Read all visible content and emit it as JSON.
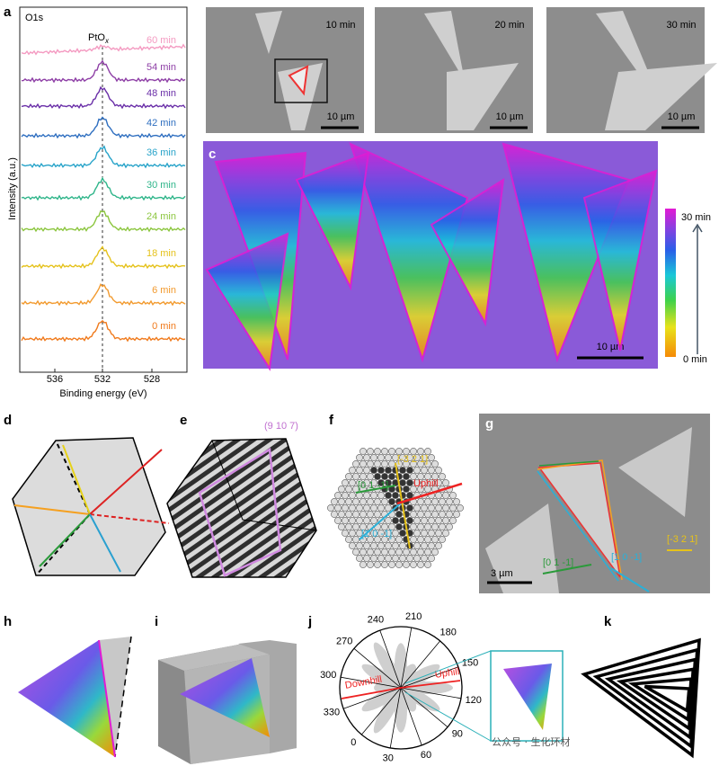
{
  "panel_a": {
    "letter": "a",
    "core_level": "O1s",
    "peak_label": "PtO",
    "peak_label_sub": "x",
    "y_label": "Intensity (a.u.)",
    "x_label": "Binding energy (eV)",
    "xticks": [
      "536",
      "532",
      "528"
    ],
    "spectra": [
      {
        "label": "60 min",
        "color": "#f49ac1"
      },
      {
        "label": "54 min",
        "color": "#8e3fa6"
      },
      {
        "label": "48 min",
        "color": "#6a2fa8"
      },
      {
        "label": "42 min",
        "color": "#2f6fc0"
      },
      {
        "label": "36 min",
        "color": "#27a3c9"
      },
      {
        "label": "30 min",
        "color": "#2fb58a"
      },
      {
        "label": "24 min",
        "color": "#8cc63f"
      },
      {
        "label": "18 min",
        "color": "#e5c21c"
      },
      {
        "label": "6 min",
        "color": "#f29a2e"
      },
      {
        "label": "0 min",
        "color": "#f07a1c"
      }
    ]
  },
  "panel_b": {
    "letter": "b",
    "images": [
      {
        "time": "10 min",
        "scale": "10 µm"
      },
      {
        "time": "20 min",
        "scale": "10 µm"
      },
      {
        "time": "30 min",
        "scale": "10 µm"
      }
    ]
  },
  "panel_c": {
    "letter": "c",
    "colorbar_max": "30 min",
    "colorbar_min": "0 min",
    "scale": "10 µm"
  },
  "panel_d": {
    "letter": "d"
  },
  "panel_e": {
    "letter": "e",
    "plane": "(9 10 7)"
  },
  "panel_f": {
    "letter": "f",
    "directions": [
      "[0 1 -1]",
      "[1 0 -1]",
      "[-3 2 1]"
    ],
    "uphill": "Uphill"
  },
  "panel_g": {
    "letter": "g",
    "directions": [
      "[0 1 -1]",
      "[1 0 -1]",
      "[-3 2 1]"
    ],
    "scale": "3 µm"
  },
  "panel_h": {
    "letter": "h"
  },
  "panel_i": {
    "letter": "i"
  },
  "panel_j": {
    "letter": "j",
    "angles": [
      "210",
      "180",
      "150",
      "120",
      "90",
      "60",
      "30",
      "0",
      "330",
      "300",
      "270",
      "240"
    ],
    "uphill": "Uphill",
    "downhill": "Downhill"
  },
  "panel_k": {
    "letter": "k"
  },
  "watermark": "公众号 · 生化环材"
}
